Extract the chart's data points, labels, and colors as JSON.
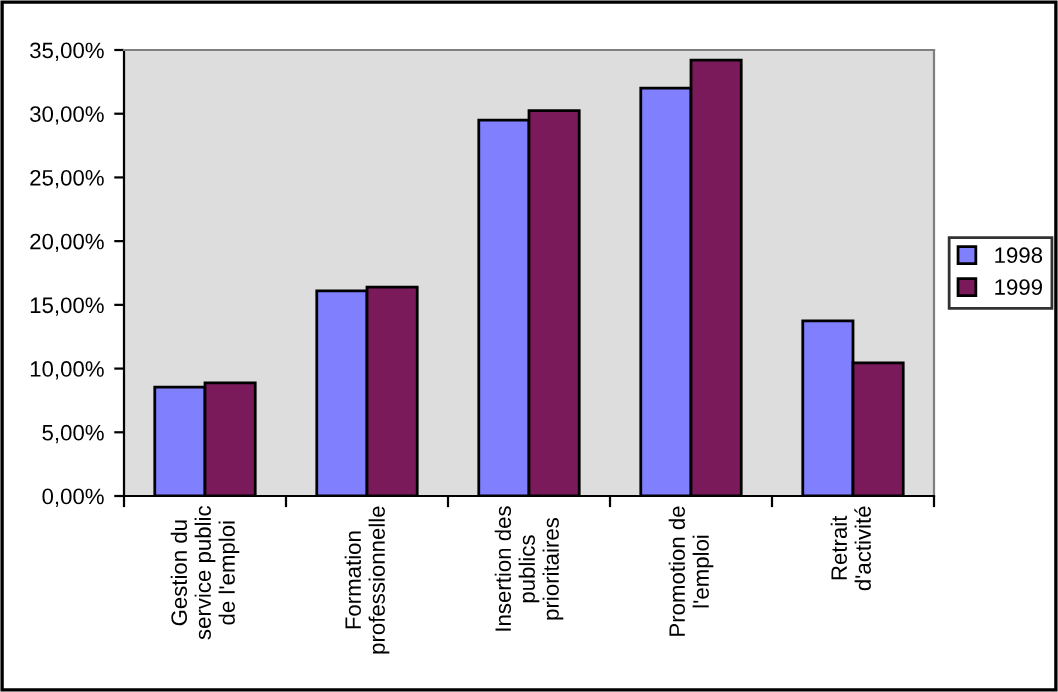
{
  "chart_data": {
    "type": "bar",
    "categories": [
      "Gestion du\nservice public\nde l'emploi",
      "Formation\nprofessionnelle",
      "Insertion des\npublics\nprioritaires",
      "Promotion de\nl'emploi",
      "Retrait\nd'activité"
    ],
    "series": [
      {
        "name": "1998",
        "color": "#8080ff",
        "values": [
          8.55,
          16.1,
          29.5,
          32.0,
          13.75
        ]
      },
      {
        "name": "1999",
        "color": "#7b1a5a",
        "values": [
          8.87,
          16.4,
          30.25,
          34.2,
          10.45
        ]
      }
    ],
    "ylim": [
      0,
      35
    ],
    "yticks": [
      {
        "value": 0,
        "label": "0,00%"
      },
      {
        "value": 5,
        "label": "5,00%"
      },
      {
        "value": 10,
        "label": "10,00%"
      },
      {
        "value": 15,
        "label": "15,00%"
      },
      {
        "value": 20,
        "label": "20,00%"
      },
      {
        "value": 25,
        "label": "25,00%"
      },
      {
        "value": 30,
        "label": "30,00%"
      },
      {
        "value": 35,
        "label": "35,00%"
      }
    ],
    "grid": false,
    "legend": "right"
  }
}
